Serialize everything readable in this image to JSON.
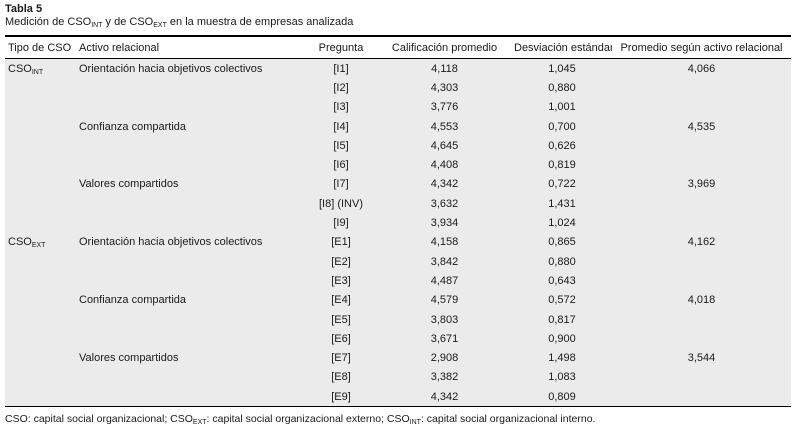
{
  "caption": {
    "label": "Tabla 5",
    "subtitle_segments": [
      {
        "text": "Medición de CSO"
      },
      {
        "text": "INT",
        "sub": true
      },
      {
        "text": " y de CSO"
      },
      {
        "text": "EXT",
        "sub": true
      },
      {
        "text": " en la muestra de empresas analizada"
      }
    ]
  },
  "table": {
    "headers": [
      "Tipo de CSO",
      "Activo relacional",
      "Pregunta",
      "Calificación promedio",
      "Desviación estándar",
      "Promedio según activo relacional"
    ],
    "rows": [
      {
        "tipo": {
          "base": "CSO",
          "sub": "INT"
        },
        "activo": "Orientación hacia objetivos colectivos",
        "pregunta": "[I1]",
        "calificacion": "4,118",
        "desviacion": "1,045",
        "promedio": "4,066"
      },
      {
        "tipo": "",
        "activo": "",
        "pregunta": "[I2]",
        "calificacion": "4,303",
        "desviacion": "0,880",
        "promedio": ""
      },
      {
        "tipo": "",
        "activo": "",
        "pregunta": "[I3]",
        "calificacion": "3,776",
        "desviacion": "1,001",
        "promedio": ""
      },
      {
        "tipo": "",
        "activo": "Confianza compartida",
        "pregunta": "[I4]",
        "calificacion": "4,553",
        "desviacion": "0,700",
        "promedio": "4,535"
      },
      {
        "tipo": "",
        "activo": "",
        "pregunta": "[I5]",
        "calificacion": "4,645",
        "desviacion": "0,626",
        "promedio": ""
      },
      {
        "tipo": "",
        "activo": "",
        "pregunta": "[I6]",
        "calificacion": "4,408",
        "desviacion": "0,819",
        "promedio": ""
      },
      {
        "tipo": "",
        "activo": "Valores compartidos",
        "pregunta": "[I7]",
        "calificacion": "4,342",
        "desviacion": "0,722",
        "promedio": "3,969"
      },
      {
        "tipo": "",
        "activo": "",
        "pregunta": "[I8] (INV)",
        "calificacion": "3,632",
        "desviacion": "1,431",
        "promedio": ""
      },
      {
        "tipo": "",
        "activo": "",
        "pregunta": "[I9]",
        "calificacion": "3,934",
        "desviacion": "1,024",
        "promedio": ""
      },
      {
        "tipo": {
          "base": "CSO",
          "sub": "EXT"
        },
        "activo": "Orientación hacia objetivos colectivos",
        "pregunta": "[E1]",
        "calificacion": "4,158",
        "desviacion": "0,865",
        "promedio": "4,162"
      },
      {
        "tipo": "",
        "activo": "",
        "pregunta": "[E2]",
        "calificacion": "3,842",
        "desviacion": "0,880",
        "promedio": ""
      },
      {
        "tipo": "",
        "activo": "",
        "pregunta": "[E3]",
        "calificacion": "4,487",
        "desviacion": "0,643",
        "promedio": ""
      },
      {
        "tipo": "",
        "activo": "Confianza compartida",
        "pregunta": "[E4]",
        "calificacion": "4,579",
        "desviacion": "0,572",
        "promedio": "4,018"
      },
      {
        "tipo": "",
        "activo": "",
        "pregunta": "[E5]",
        "calificacion": "3,803",
        "desviacion": "0,817",
        "promedio": ""
      },
      {
        "tipo": "",
        "activo": "",
        "pregunta": "[E6]",
        "calificacion": "3,671",
        "desviacion": "0,900",
        "promedio": ""
      },
      {
        "tipo": "",
        "activo": "Valores compartidos",
        "pregunta": "[E7]",
        "calificacion": "2,908",
        "desviacion": "1,498",
        "promedio": "3,544"
      },
      {
        "tipo": "",
        "activo": "",
        "pregunta": "[E8]",
        "calificacion": "3,382",
        "desviacion": "1,083",
        "promedio": ""
      },
      {
        "tipo": "",
        "activo": "",
        "pregunta": "[E9]",
        "calificacion": "4,342",
        "desviacion": "0,809",
        "promedio": ""
      }
    ]
  },
  "footnote_segments": [
    {
      "text": "CSO: capital social organizacional; CSO"
    },
    {
      "text": "EXT",
      "sub": true
    },
    {
      "text": ": capital social organizacional externo; CSO"
    },
    {
      "text": "INT",
      "sub": true
    },
    {
      "text": ": capital social organizacional interno."
    }
  ],
  "colors": {
    "body_background": "#ebebeb",
    "header_background": "#ffffff",
    "rule": "#000000",
    "text": "#1a1a1a"
  }
}
